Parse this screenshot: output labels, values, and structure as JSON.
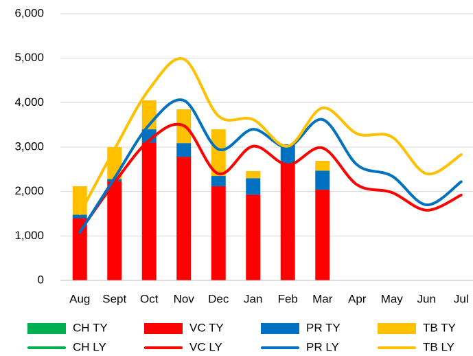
{
  "chart_data": {
    "type": "bar",
    "categories": [
      "Aug",
      "Sept",
      "Oct",
      "Nov",
      "Dec",
      "Jan",
      "Feb",
      "Mar",
      "Apr",
      "May",
      "Jun",
      "Jul"
    ],
    "series": [
      {
        "name": "CH TY",
        "type": "bar",
        "color": "#00b050",
        "values": [
          0,
          0,
          0,
          0,
          0,
          0,
          0,
          0,
          null,
          null,
          null,
          null
        ]
      },
      {
        "name": "VC TY",
        "type": "bar",
        "color": "#ff0000",
        "values": [
          1400,
          2230,
          3100,
          2780,
          2120,
          1930,
          2630,
          2040,
          null,
          null,
          null,
          null
        ]
      },
      {
        "name": "PR TY",
        "type": "bar",
        "color": "#0070c0",
        "values": [
          80,
          50,
          300,
          310,
          230,
          370,
          430,
          430,
          null,
          null,
          null,
          null
        ]
      },
      {
        "name": "TB TY",
        "type": "bar",
        "color": "#ffc000",
        "values": [
          640,
          720,
          650,
          760,
          1050,
          160,
          0,
          220,
          null,
          null,
          null,
          null
        ]
      },
      {
        "name": "CH LY",
        "type": "line",
        "color": "#00b050",
        "values": [
          null,
          null,
          null,
          null,
          null,
          null,
          null,
          null,
          null,
          null,
          null,
          null
        ]
      },
      {
        "name": "VC LY",
        "type": "line",
        "color": "#ff0000",
        "values": [
          1100,
          2200,
          3150,
          3480,
          2400,
          3020,
          2600,
          2980,
          2150,
          1980,
          1580,
          1920
        ]
      },
      {
        "name": "PR LY",
        "type": "line",
        "color": "#0070c0",
        "values": [
          1080,
          2300,
          3500,
          4050,
          2950,
          3400,
          3000,
          3620,
          2600,
          2350,
          1700,
          2220
        ]
      },
      {
        "name": "TB LY",
        "type": "line",
        "color": "#ffc000",
        "values": [
          1500,
          2950,
          4300,
          4980,
          3700,
          3620,
          3020,
          3880,
          3300,
          3230,
          2400,
          2830
        ]
      }
    ],
    "ylim": [
      0,
      6000
    ],
    "yticks": [
      0,
      {
        "value": 1000,
        "label": "1,000"
      },
      {
        "value": 2000,
        "label": "2,000"
      },
      {
        "value": 3000,
        "label": "3,000"
      },
      {
        "value": 4000,
        "label": "4,000"
      },
      {
        "value": 5000,
        "label": "5,000"
      },
      {
        "value": 6000,
        "label": "6,000"
      }
    ],
    "grid": true
  }
}
